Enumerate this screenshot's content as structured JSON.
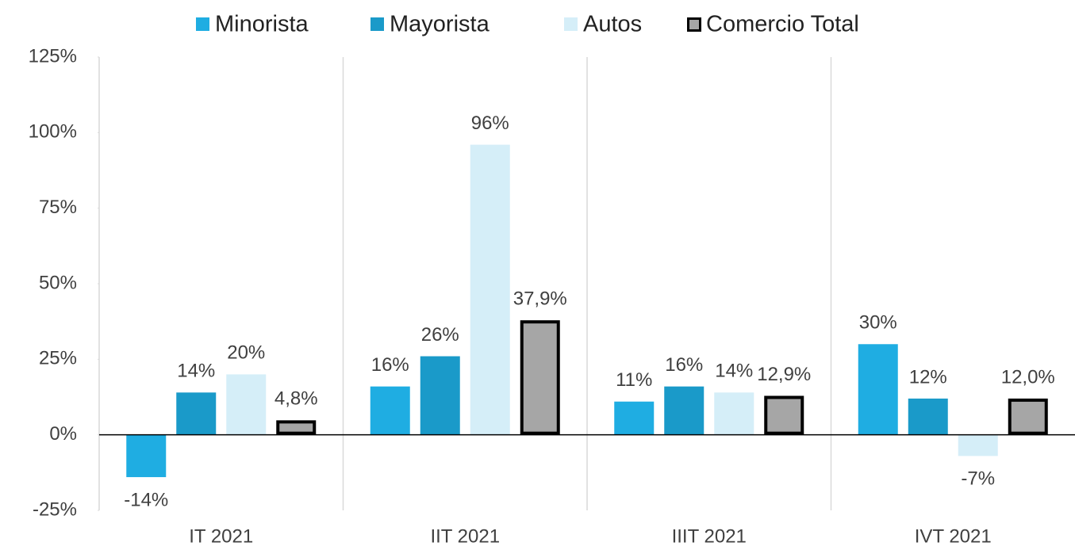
{
  "chart_data": {
    "type": "bar",
    "categories": [
      "IT 2021",
      "IIT 2021",
      "IIIT 2021",
      "IVT 2021"
    ],
    "series": [
      {
        "name": "Minorista",
        "color": "#1fade2",
        "values": [
          -14,
          16,
          11,
          30
        ],
        "value_labels": [
          "-14%",
          "16%",
          "11%",
          "30%"
        ]
      },
      {
        "name": "Mayorista",
        "color": "#1a9ac9",
        "values": [
          14,
          26,
          16,
          12
        ],
        "value_labels": [
          "14%",
          "26%",
          "16%",
          "12%"
        ]
      },
      {
        "name": "Autos",
        "color": "#d5eef8",
        "values": [
          20,
          96,
          14,
          -7
        ],
        "value_labels": [
          "20%",
          "96%",
          "14%",
          "-7%"
        ]
      },
      {
        "name": "Comercio Total",
        "color": "#a6a6a6",
        "edgecolor": "#000000",
        "values": [
          4.8,
          37.9,
          12.9,
          12.0
        ],
        "value_labels": [
          "4,8%",
          "37,9%",
          "12,9%",
          "12,0%"
        ]
      }
    ],
    "ylim": [
      -25,
      125
    ],
    "yticks": [
      {
        "value": -25,
        "label": "-25%"
      },
      {
        "value": 0,
        "label": "0%"
      },
      {
        "value": 25,
        "label": "25%"
      },
      {
        "value": 50,
        "label": "50%"
      },
      {
        "value": 75,
        "label": "75%"
      },
      {
        "value": 100,
        "label": "100%"
      },
      {
        "value": 125,
        "label": "125%"
      }
    ],
    "legend": "top"
  }
}
